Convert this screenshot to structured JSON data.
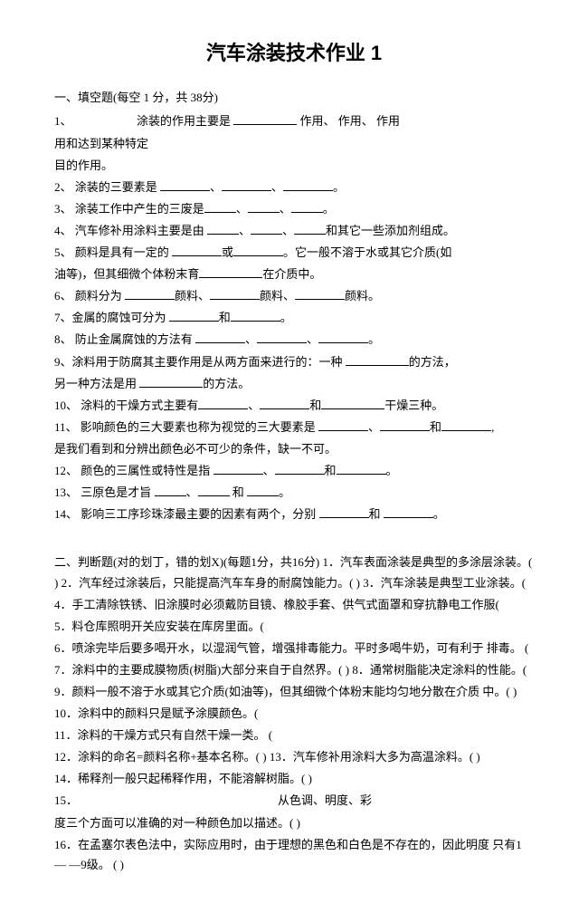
{
  "title": "汽车涂装技术作业 1",
  "section1_heading": "一、填空题(每空 1 分，共 38分)",
  "q1a": "1、",
  "q1b": "涂装的作用主要是 ",
  "q1c": " 作用、   作用、   作用",
  "q1_line2": "用和达到某种特定",
  "q1_line3": "目的作用。",
  "q2": "2、 涂装的三要素是 ",
  "q2_sep1": "、",
  "q2_sep2": "、",
  "q2_end": "。",
  "q3": "3、 涂装工作中产生的三废是",
  "q3_sep1": "、",
  "q3_sep2": "、",
  "q3_end": "。",
  "q4": "4、 汽车修补用涂料主要是由 ",
  "q4_sep1": "、",
  "q4_sep2": "、",
  "q4_end": "和其它一些添加剂组成。",
  "q5": "5、 颜料是具有一定的 ",
  "q5_mid": "或",
  "q5_after": "。它一般不溶于水或其它介质(如",
  "q5_line2a": "油等)，但其细微个体粉末育",
  "q5_line2b": "在介质中。",
  "q6": "6、 颜料分为 ",
  "q6_mid1": "颜料、",
  "q6_mid2": "颜料、",
  "q6_end": "颜料。",
  "q7": "7、金属的腐蚀可分为 ",
  "q7_mid": "和",
  "q7_end": "。",
  "q8": "8、 防止金属腐蚀的方法有 ",
  "q8_sep1": "、",
  "q8_sep2": "、",
  "q8_end": "。",
  "q9": "9、涂料用于防腐其主要作用是从两方面来进行的：一种 ",
  "q9_end": "的方法，",
  "q9_line2a": "另一种方法是用 ",
  "q9_line2b": "的方法。",
  "q10": "10、 涂料的干燥方式主要有",
  "q10_sep1": "、",
  "q10_mid": "和",
  "q10_end": "干燥三种。",
  "q11": "11、 影响颜色的三大要素也称为视觉的三大要素是 ",
  "q11_sep1": "、",
  "q11_mid": "和",
  "q11_end": ",",
  "q11_line2": "是我们看到和分辨出颜色必不可少的条件，缺一不可。",
  "q12": "12、 颜色的三属性或特性是指 ",
  "q12_sep1": "、",
  "q12_mid": "和",
  "q12_end": "。",
  "q13": "13、 三原色是才旨 ",
  "q13_sep1": "、",
  "q13_mid": " 和 ",
  "q13_end": "。",
  "q14": "14、 影响三工序珍珠漆最主要的因素有两个，分别 ",
  "q14_mid": "和 ",
  "q14_end": "。",
  "section2_heading": "二、判断题(对的划丁，错的划X)(每题1分，共16分) 1．汽车表面涂装是典型的多涂层涂装。(  ) 2．汽车经过涂装后，只能提高汽车车身的耐腐蚀能力。(  ) 3．汽车涂装是典型工业涂装。(  ",
  "s2_q4": "4．手工清除铁锈、旧涂膜时必须戴防目镜、橡胶手套、供气式面罩和穿抗静电工作服(",
  "s2_q5": "5．料仓库照明开关应安装在库房里面。(  ",
  "s2_q6": "6．喷涂完毕后要多喝开水，以湿润气管，增强排毒能力。平时多喝牛奶，可有利于 排毒。    ( ",
  "s2_q7": "7．涂料中的主要成膜物质(树脂)大部分来自于自然界。(  ) 8．通常树脂能决定涂料的性能。( ",
  "s2_q9": "9．颜料一般不溶于水或其它介质(如油等)，但其细微个体粉末能均匀地分散在介质 中。(  )",
  "s2_q10": "10．涂料中的颜料只是赋予涂膜颜色。(     ",
  "s2_q11": "11．涂料的干燥方式只有自然干燥一类。   (  ",
  "s2_q12": "12．涂料的命名=颜料名称+基本名称。(   ) 13．汽车修补用涂料大多为高温涂料。(  ) ",
  "s2_q14": "14．稀释剂一般只起稀释作用，不能溶解树脂。(   )",
  "s2_q15a": "15．",
  "s2_q15b": "从色调、明度、彩",
  "s2_q15_line2": "度三个方面可以准确的对一种颜色加以描述。(                                         )",
  "s2_q16": "16．在孟塞尔表色法中，实际应用时，由于理想的黑色和白色是不存在的，因此明度 只有1 — —9级。   ( )"
}
